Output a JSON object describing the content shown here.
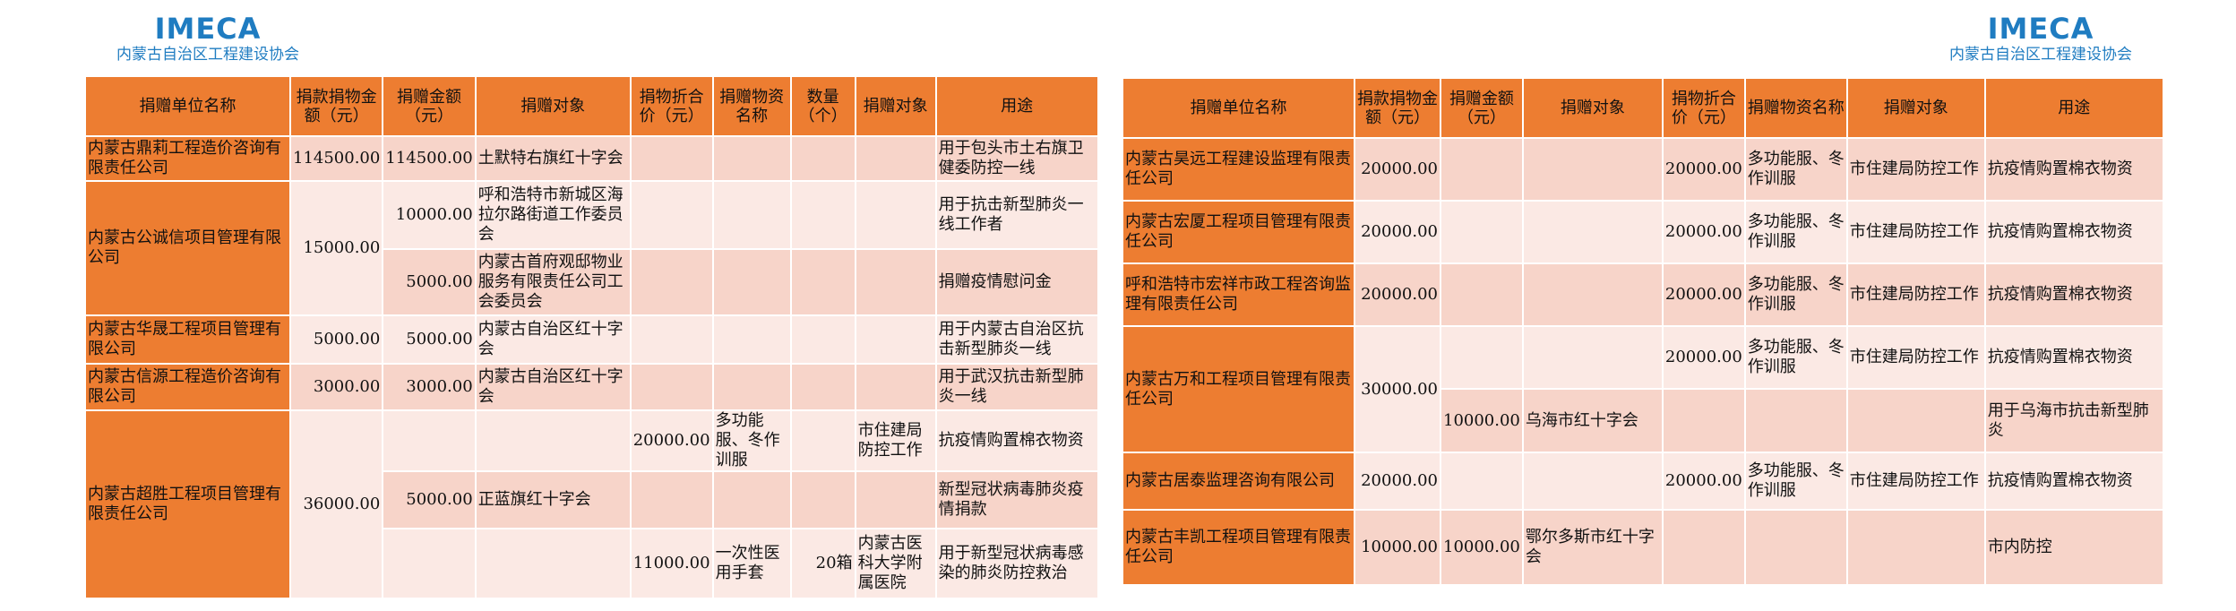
{
  "logo_left": {
    "brand": "IMECA",
    "org": "内蒙古自治区工程建设协会"
  },
  "logo_right": {
    "brand": "IMECA",
    "org": "内蒙古自治区工程建设协会"
  },
  "colors": {
    "header": "#ED7D31",
    "row_dark": "#F7D4C9",
    "row_light": "#FBE9E4",
    "logo": "#1F7CC1"
  },
  "tables": [
    {
      "headers": [
        "捐赠单位名称",
        "捐款捐物金额（元）",
        "捐赠金额（元）",
        "捐赠对象",
        "捐物折合价（元）",
        "捐赠物资名称",
        "数量（个）",
        "捐赠对象",
        "用途"
      ],
      "rows": [
        {
          "cells": [
            {
              "text": "内蒙古鼎莉工程造价咨询有限责任公司",
              "kind": "name"
            },
            {
              "text": "114500.00",
              "kind": "num"
            },
            {
              "text": "114500.00",
              "kind": "num"
            },
            {
              "text": "土默特右旗红十字会",
              "kind": "txt"
            },
            {
              "text": "",
              "kind": "num"
            },
            {
              "text": "",
              "kind": "txt"
            },
            {
              "text": "",
              "kind": "num"
            },
            {
              "text": "",
              "kind": "txt"
            },
            {
              "text": "用于包头市土右旗卫健委防控一线",
              "kind": "txt"
            }
          ]
        },
        {
          "cells": [
            {
              "text": "内蒙古公诚信项目管理有限公司",
              "kind": "name",
              "rowspan": 2
            },
            {
              "text": "15000.00",
              "kind": "num",
              "rowspan": 2
            },
            {
              "text": "10000.00",
              "kind": "num"
            },
            {
              "text": "呼和浩特市新城区海拉尔路街道工作委员会",
              "kind": "txt"
            },
            {
              "text": "",
              "kind": "num"
            },
            {
              "text": "",
              "kind": "txt"
            },
            {
              "text": "",
              "kind": "num"
            },
            {
              "text": "",
              "kind": "txt"
            },
            {
              "text": "用于抗击新型肺炎一线工作者",
              "kind": "txt"
            }
          ]
        },
        {
          "cells": [
            {
              "text": "5000.00",
              "kind": "num"
            },
            {
              "text": "内蒙古首府观邸物业服务有限责任公司工会委员会",
              "kind": "txt"
            },
            {
              "text": "",
              "kind": "num"
            },
            {
              "text": "",
              "kind": "txt"
            },
            {
              "text": "",
              "kind": "num"
            },
            {
              "text": "",
              "kind": "txt"
            },
            {
              "text": "捐赠疫情慰问金",
              "kind": "txt"
            }
          ]
        },
        {
          "cells": [
            {
              "text": "内蒙古华晟工程项目管理有限公司",
              "kind": "name"
            },
            {
              "text": "5000.00",
              "kind": "num"
            },
            {
              "text": "5000.00",
              "kind": "num"
            },
            {
              "text": "内蒙古自治区红十字会",
              "kind": "txt"
            },
            {
              "text": "",
              "kind": "num"
            },
            {
              "text": "",
              "kind": "txt"
            },
            {
              "text": "",
              "kind": "num"
            },
            {
              "text": "",
              "kind": "txt"
            },
            {
              "text": "用于内蒙古自治区抗击新型肺炎一线",
              "kind": "txt"
            }
          ]
        },
        {
          "cells": [
            {
              "text": "内蒙古信源工程造价咨询有限公司",
              "kind": "name"
            },
            {
              "text": "3000.00",
              "kind": "num"
            },
            {
              "text": "3000.00",
              "kind": "num"
            },
            {
              "text": "内蒙古自治区红十字会",
              "kind": "txt"
            },
            {
              "text": "",
              "kind": "num"
            },
            {
              "text": "",
              "kind": "txt"
            },
            {
              "text": "",
              "kind": "num"
            },
            {
              "text": "",
              "kind": "txt"
            },
            {
              "text": "用于武汉抗击新型肺炎一线",
              "kind": "txt"
            }
          ]
        },
        {
          "cells": [
            {
              "text": "内蒙古超胜工程项目管理有限责任公司",
              "kind": "name",
              "rowspan": 3
            },
            {
              "text": "36000.00",
              "kind": "num",
              "rowspan": 3
            },
            {
              "text": "",
              "kind": "num"
            },
            {
              "text": "",
              "kind": "txt"
            },
            {
              "text": "20000.00",
              "kind": "num"
            },
            {
              "text": "多功能服、冬作训服",
              "kind": "txt"
            },
            {
              "text": "",
              "kind": "num"
            },
            {
              "text": "市住建局防控工作",
              "kind": "txt"
            },
            {
              "text": "抗疫情购置棉衣物资",
              "kind": "txt"
            }
          ]
        },
        {
          "cells": [
            {
              "text": "5000.00",
              "kind": "num"
            },
            {
              "text": "正蓝旗红十字会",
              "kind": "txt"
            },
            {
              "text": "",
              "kind": "num"
            },
            {
              "text": "",
              "kind": "txt"
            },
            {
              "text": "",
              "kind": "num"
            },
            {
              "text": "",
              "kind": "txt"
            },
            {
              "text": "新型冠状病毒肺炎疫情捐款",
              "kind": "txt"
            }
          ]
        },
        {
          "cells": [
            {
              "text": "",
              "kind": "num"
            },
            {
              "text": "",
              "kind": "txt"
            },
            {
              "text": "11000.00",
              "kind": "num"
            },
            {
              "text": "一次性医用手套",
              "kind": "txt"
            },
            {
              "text": "20箱",
              "kind": "num"
            },
            {
              "text": "内蒙古医科大学附属医院",
              "kind": "txt"
            },
            {
              "text": "用于新型冠状病毒感染的肺炎防控救治",
              "kind": "txt"
            }
          ]
        }
      ]
    },
    {
      "headers": [
        "捐赠单位名称",
        "捐款捐物金额（元）",
        "捐赠金额（元）",
        "捐赠对象",
        "捐物折合价（元）",
        "捐赠物资名称",
        "捐赠对象",
        "用途"
      ],
      "rows": [
        {
          "cells": [
            {
              "text": "内蒙古昊远工程建设监理有限责任公司",
              "kind": "name"
            },
            {
              "text": "20000.00",
              "kind": "num"
            },
            {
              "text": "",
              "kind": "num"
            },
            {
              "text": "",
              "kind": "txt"
            },
            {
              "text": "20000.00",
              "kind": "num"
            },
            {
              "text": "多功能服、冬作训服",
              "kind": "txt"
            },
            {
              "text": "市住建局防控工作",
              "kind": "txt"
            },
            {
              "text": "抗疫情购置棉衣物资",
              "kind": "txt"
            }
          ]
        },
        {
          "cells": [
            {
              "text": "内蒙古宏厦工程项目管理有限责任公司",
              "kind": "name"
            },
            {
              "text": "20000.00",
              "kind": "num"
            },
            {
              "text": "",
              "kind": "num"
            },
            {
              "text": "",
              "kind": "txt"
            },
            {
              "text": "20000.00",
              "kind": "num"
            },
            {
              "text": "多功能服、冬作训服",
              "kind": "txt"
            },
            {
              "text": "市住建局防控工作",
              "kind": "txt"
            },
            {
              "text": "抗疫情购置棉衣物资",
              "kind": "txt"
            }
          ]
        },
        {
          "cells": [
            {
              "text": "呼和浩特市宏祥市政工程咨询监理有限责任公司",
              "kind": "name"
            },
            {
              "text": "20000.00",
              "kind": "num"
            },
            {
              "text": "",
              "kind": "num"
            },
            {
              "text": "",
              "kind": "txt"
            },
            {
              "text": "20000.00",
              "kind": "num"
            },
            {
              "text": "多功能服、冬作训服",
              "kind": "txt"
            },
            {
              "text": "市住建局防控工作",
              "kind": "txt"
            },
            {
              "text": "抗疫情购置棉衣物资",
              "kind": "txt"
            }
          ]
        },
        {
          "cells": [
            {
              "text": "内蒙古万和工程项目管理有限责任公司",
              "kind": "name",
              "rowspan": 2
            },
            {
              "text": "30000.00",
              "kind": "num",
              "rowspan": 2
            },
            {
              "text": "",
              "kind": "num"
            },
            {
              "text": "",
              "kind": "txt"
            },
            {
              "text": "20000.00",
              "kind": "num"
            },
            {
              "text": "多功能服、冬作训服",
              "kind": "txt"
            },
            {
              "text": "市住建局防控工作",
              "kind": "txt"
            },
            {
              "text": "抗疫情购置棉衣物资",
              "kind": "txt"
            }
          ]
        },
        {
          "cells": [
            {
              "text": "10000.00",
              "kind": "num"
            },
            {
              "text": "乌海市红十字会",
              "kind": "txt"
            },
            {
              "text": "",
              "kind": "num"
            },
            {
              "text": "",
              "kind": "txt"
            },
            {
              "text": "",
              "kind": "txt"
            },
            {
              "text": "用于乌海市抗击新型肺炎",
              "kind": "txt"
            }
          ]
        },
        {
          "cells": [
            {
              "text": "内蒙古居泰监理咨询有限公司",
              "kind": "name"
            },
            {
              "text": "20000.00",
              "kind": "num"
            },
            {
              "text": "",
              "kind": "num"
            },
            {
              "text": "",
              "kind": "txt"
            },
            {
              "text": "20000.00",
              "kind": "num"
            },
            {
              "text": "多功能服、冬作训服",
              "kind": "txt"
            },
            {
              "text": "市住建局防控工作",
              "kind": "txt"
            },
            {
              "text": "抗疫情购置棉衣物资",
              "kind": "txt"
            }
          ]
        },
        {
          "cells": [
            {
              "text": "内蒙古丰凯工程项目管理有限责任公司",
              "kind": "name"
            },
            {
              "text": "10000.00",
              "kind": "num"
            },
            {
              "text": "10000.00",
              "kind": "num"
            },
            {
              "text": "鄂尔多斯市红十字会",
              "kind": "txt"
            },
            {
              "text": "",
              "kind": "num"
            },
            {
              "text": "",
              "kind": "txt"
            },
            {
              "text": "",
              "kind": "txt"
            },
            {
              "text": "市内防控",
              "kind": "txt"
            }
          ]
        }
      ]
    }
  ]
}
